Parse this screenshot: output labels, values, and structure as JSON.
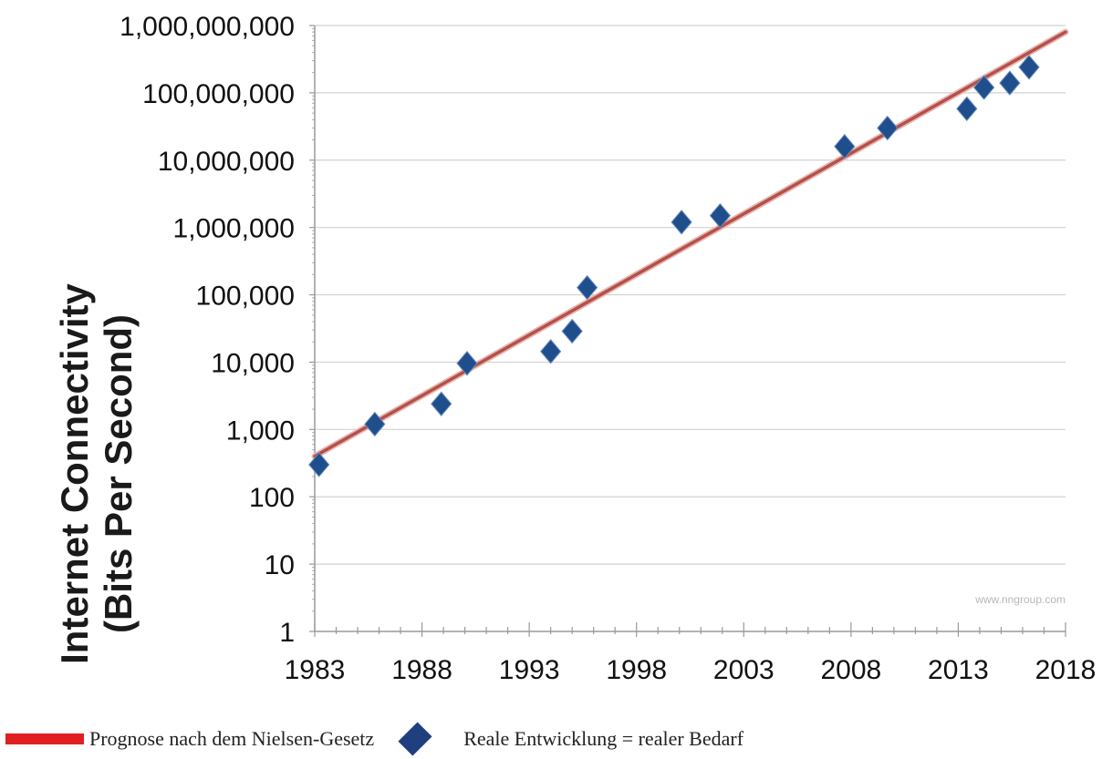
{
  "chart_data": {
    "type": "scatter",
    "ylabel_line1": "Internet Connectivity",
    "ylabel_line2": "(Bits Per Second)",
    "xlabel": "",
    "xlim": [
      1983,
      2018
    ],
    "ylim": [
      1,
      1000000000
    ],
    "y_scale": "log",
    "x_ticks": [
      1983,
      1988,
      1993,
      1998,
      2003,
      2008,
      2013,
      2018
    ],
    "y_ticks": [
      {
        "value": 1,
        "label": "1"
      },
      {
        "value": 10,
        "label": "10"
      },
      {
        "value": 100,
        "label": "100"
      },
      {
        "value": 1000,
        "label": "1,000"
      },
      {
        "value": 10000,
        "label": "10,000"
      },
      {
        "value": 100000,
        "label": "100,000"
      },
      {
        "value": 1000000,
        "label": "1,000,000"
      },
      {
        "value": 10000000,
        "label": "10,000,000"
      },
      {
        "value": 100000000,
        "label": "100,000,000"
      },
      {
        "value": 1000000000,
        "label": "1,000,000,000"
      }
    ],
    "grid": "horizontal",
    "watermark": "www.nngroup.com",
    "series": [
      {
        "name": "Prognose nach dem Nielsen-Gesetz",
        "kind": "line",
        "color": "#b5504a",
        "x": [
          1983,
          2018
        ],
        "y": [
          400,
          800000000
        ]
      },
      {
        "name": "Reale Entwicklung = realer Bedarf",
        "kind": "scatter",
        "color": "#1f4e8c",
        "marker": "diamond",
        "x": [
          1983.2,
          1985.8,
          1988.9,
          1990.1,
          1994,
          1995,
          1995.7,
          2000.1,
          2001.9,
          2007.7,
          2009.7,
          2013.4,
          2014.2,
          2015.4,
          2016.3
        ],
        "y": [
          300,
          1200,
          2400,
          9600,
          14400,
          28800,
          128000,
          1200000,
          1500000,
          16000000,
          30000000,
          58000000,
          120000000,
          140000000,
          240000000
        ]
      }
    ]
  },
  "legend": {
    "line_label": "Prognose nach dem Nielsen-Gesetz",
    "line_color": "#e02020",
    "marker_label": "Reale Entwicklung = realer Bedarf",
    "marker_color": "#1f3f7f"
  }
}
